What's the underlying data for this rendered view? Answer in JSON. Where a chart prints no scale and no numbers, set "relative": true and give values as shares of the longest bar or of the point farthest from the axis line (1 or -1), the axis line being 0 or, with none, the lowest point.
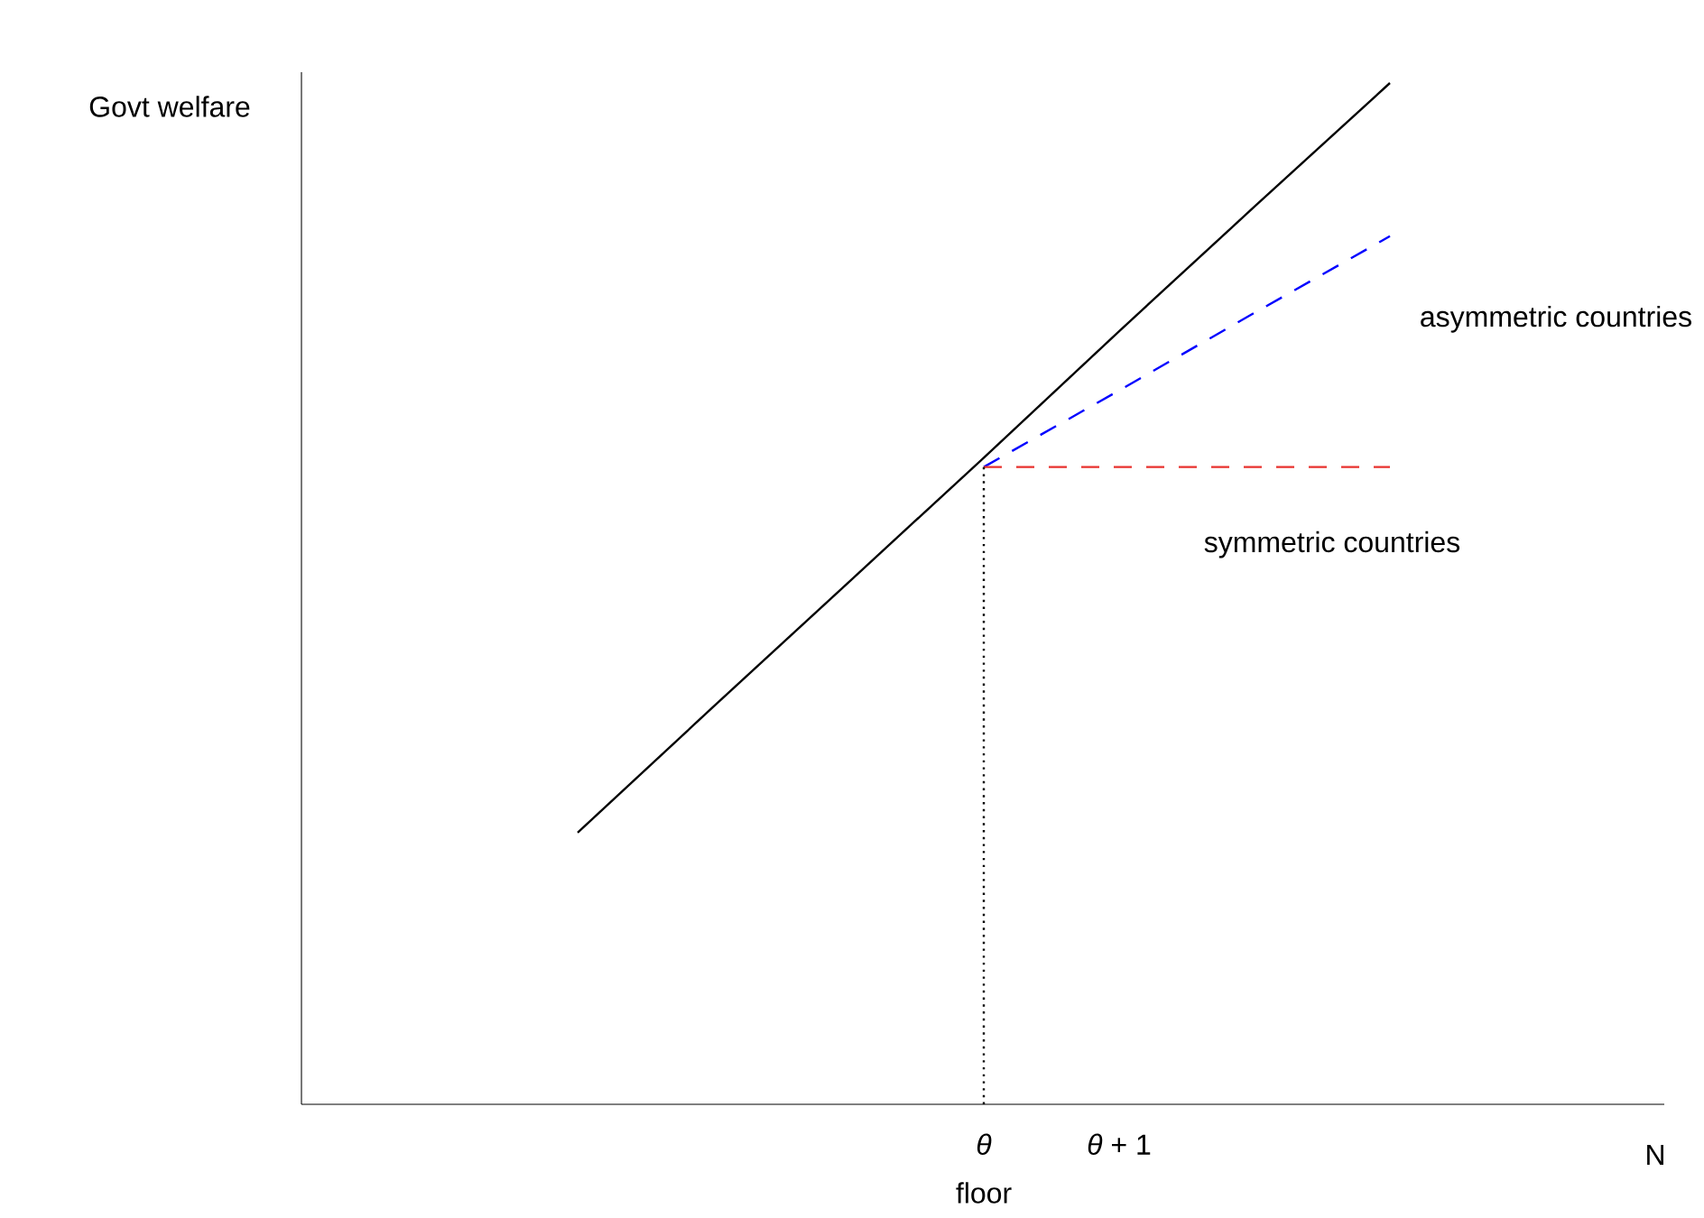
{
  "chart_data": {
    "type": "line",
    "relative": true,
    "categories": [
      null,
      null,
      null,
      "*θ*",
      "*θ* + 1",
      null,
      null
    ],
    "annotations": [
      "Govt welfare",
      "floor",
      "N"
    ],
    "marker": "none",
    "series": [
      {
        "color": "#000000",
        "line_style": "solid",
        "values": [
          0.266,
          0.389,
          0.511,
          0.633,
          0.757,
          0.879,
          1
        ]
      },
      {
        "name": "asymmetric countries",
        "color": "#0000ff",
        "line_style": "dashed",
        "values": [
          null,
          null,
          null,
          0.624,
          0.699,
          0.775,
          0.85
        ]
      },
      {
        "name": "symmetric countries",
        "color": "#e8322e",
        "line_style": "dashed",
        "values": [
          null,
          null,
          null,
          0.624,
          0.624,
          0.624,
          0.624
        ]
      },
      {
        "color": "#000000",
        "line_style": "dotted",
        "x": [
          "*θ*",
          "*θ*"
        ],
        "values": [
          0,
          0.624
        ]
      }
    ]
  }
}
